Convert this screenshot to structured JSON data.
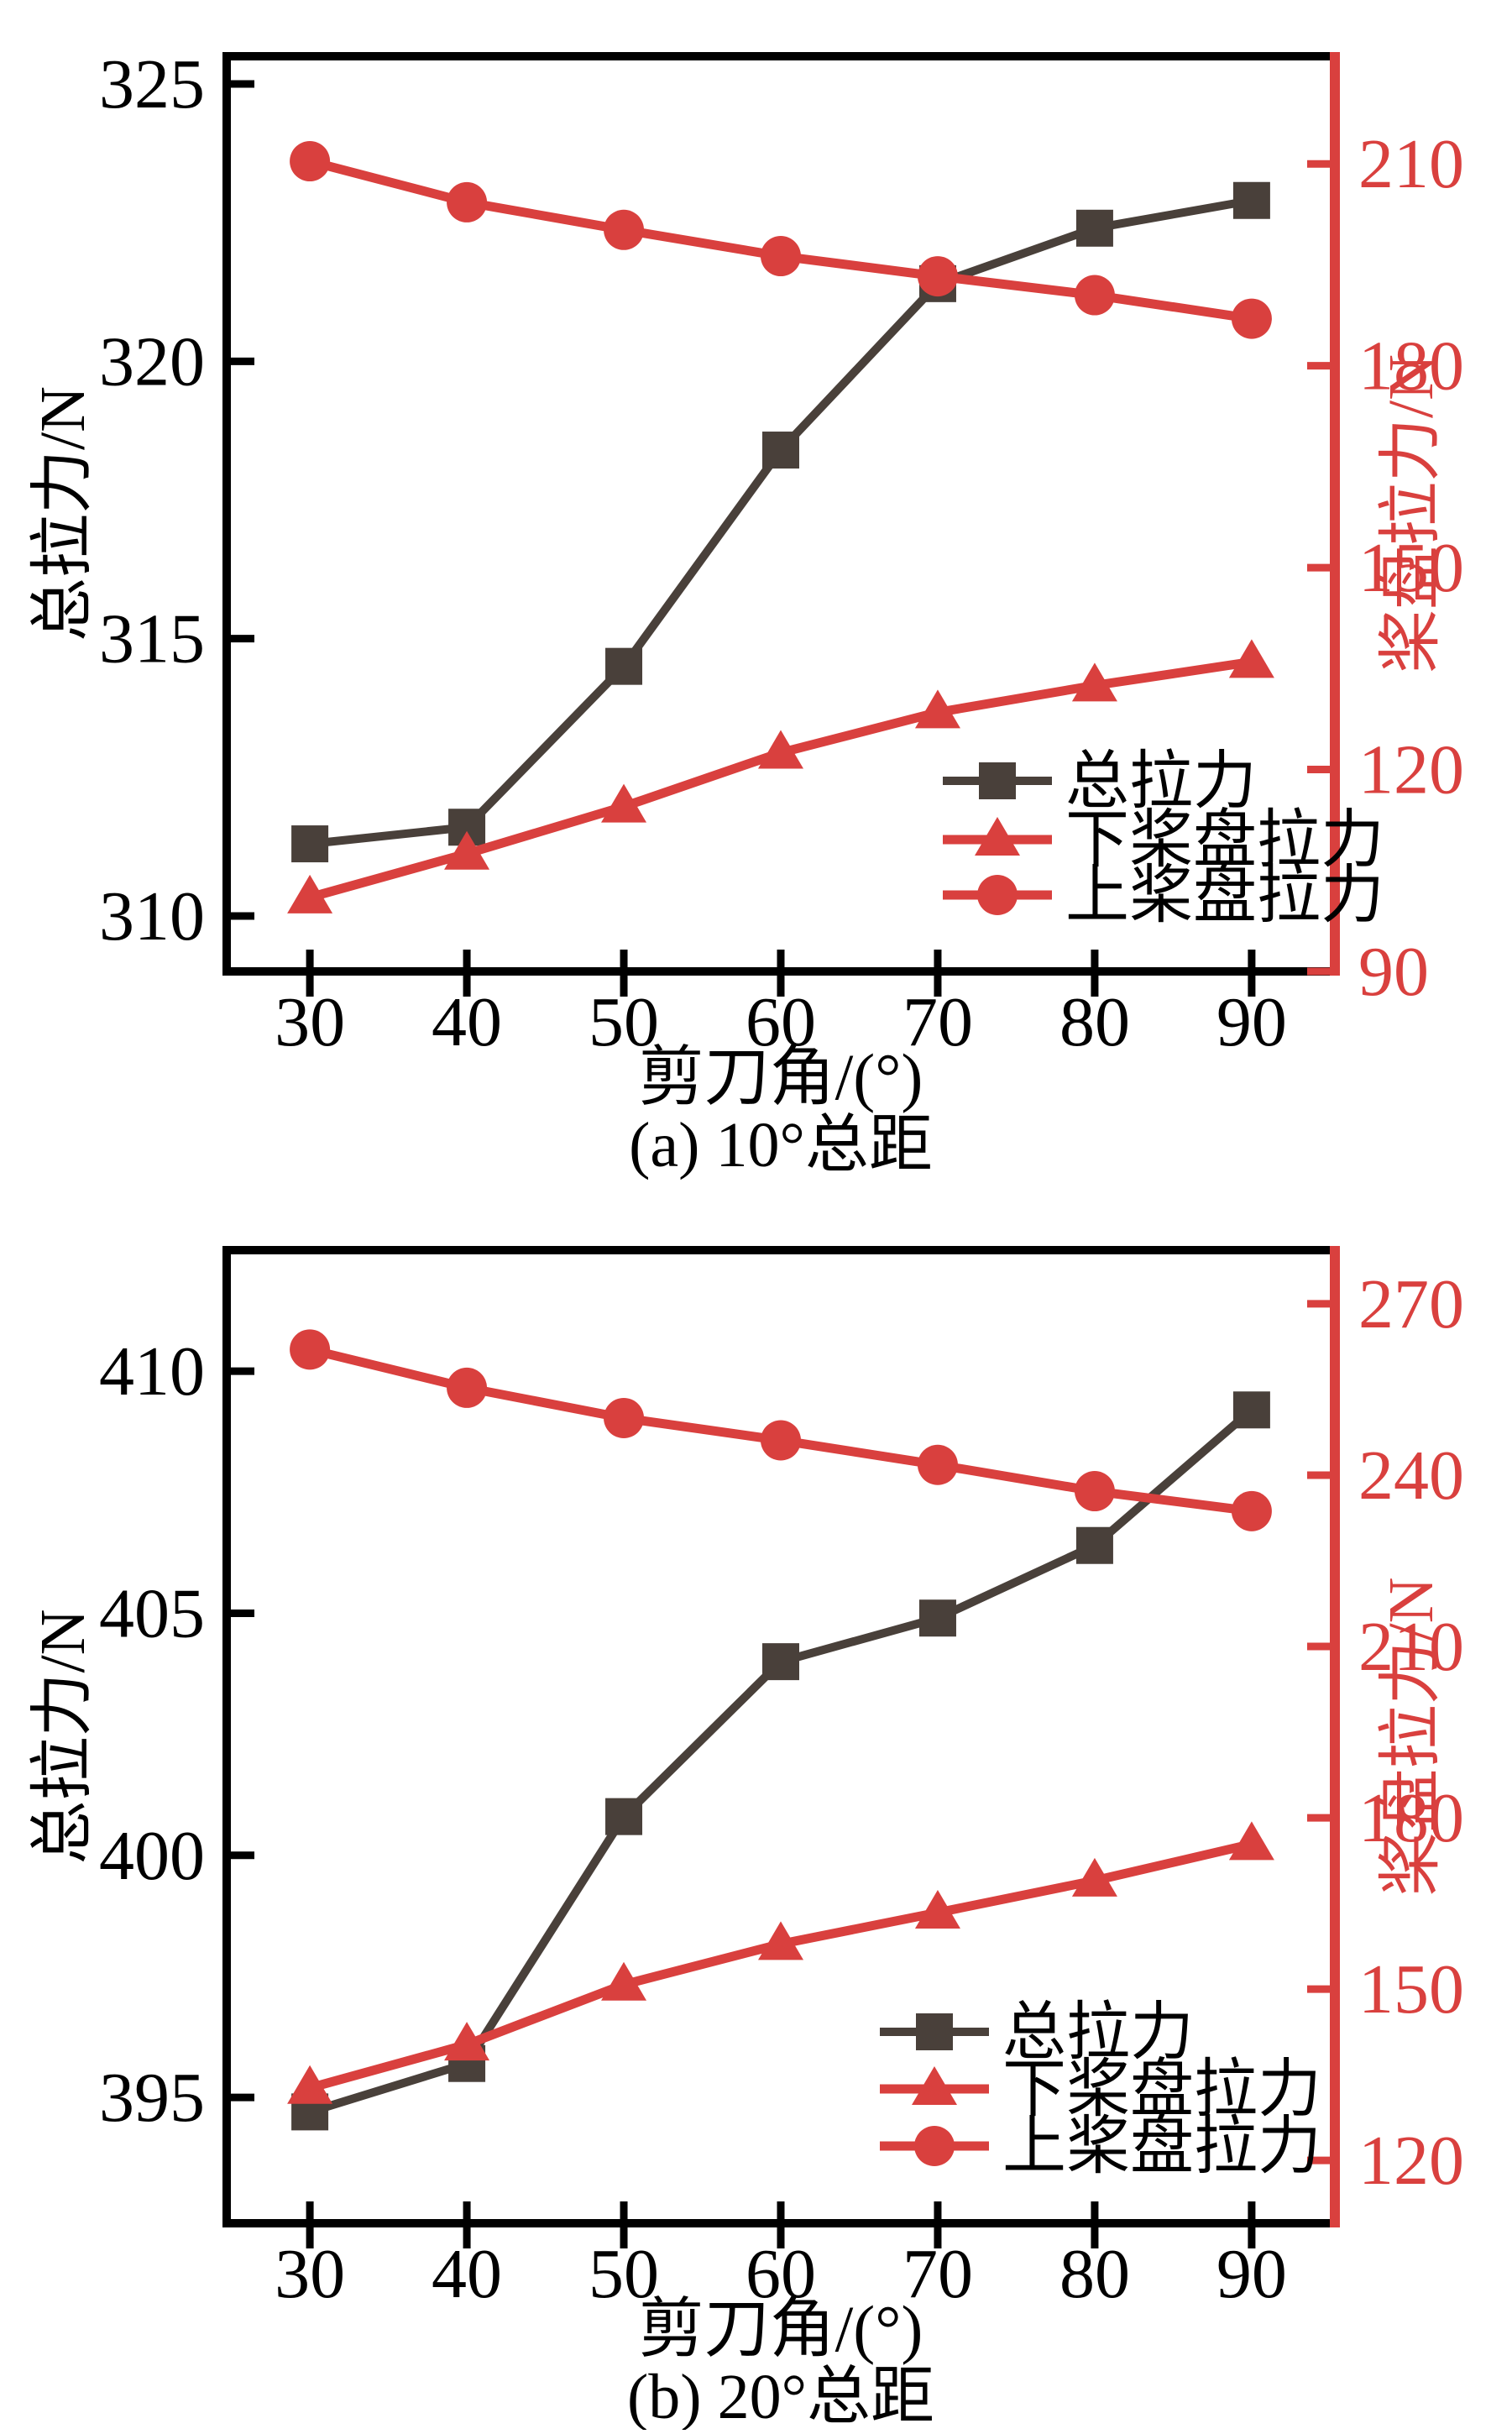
{
  "figure": {
    "background": "#ffffff",
    "description_visible_text_only": true
  },
  "colors": {
    "series_dark": "#49403a",
    "series_red": "#d9403e",
    "axis_black": "#000000",
    "axis_red": "#d9403e",
    "text_black": "#000000"
  },
  "chart_data": [
    {
      "id": "a",
      "type": "line",
      "subtitle": "(a) 10°总距",
      "xlabel": "剪刀角/(°)",
      "ylabel_left": "总拉力/N",
      "ylabel_right": "桨盘拉力/N",
      "grid": false,
      "legend_position": "inside-lower-right",
      "x_range": [
        24.7,
        95.3
      ],
      "x_ticks": [
        30,
        40,
        50,
        60,
        70,
        80,
        90
      ],
      "left_range": [
        309.0,
        325.5
      ],
      "left_ticks": [
        310,
        315,
        320,
        325
      ],
      "right_range": [
        90,
        226
      ],
      "right_ticks": [
        90,
        120,
        150,
        180,
        210
      ],
      "x": [
        30,
        40,
        50,
        60,
        70,
        80,
        90
      ],
      "series": [
        {
          "name": "总拉力",
          "axis": "left",
          "marker": "square",
          "color": "#49403a",
          "values": [
            311.3,
            311.6,
            314.5,
            318.4,
            321.4,
            322.4,
            322.9
          ]
        },
        {
          "name": "下桨盘拉力",
          "axis": "right",
          "marker": "triangle",
          "color": "#d9403e",
          "values": [
            101.0,
            107.5,
            114.5,
            122.5,
            128.5,
            132.5,
            136.0
          ]
        },
        {
          "name": "上桨盘拉力",
          "axis": "right",
          "marker": "circle",
          "color": "#d9403e",
          "values": [
            210.4,
            204.3,
            200.2,
            196.3,
            193.3,
            190.5,
            187.0
          ]
        }
      ]
    },
    {
      "id": "b",
      "type": "line",
      "subtitle": "(b) 20°总距",
      "xlabel": "剪刀角/(°)",
      "ylabel_left": "总拉力/N",
      "ylabel_right": "桨盘拉力/N",
      "grid": false,
      "legend_position": "inside-lower-right",
      "x_range": [
        24.7,
        95.3
      ],
      "x_ticks": [
        30,
        40,
        50,
        60,
        70,
        80,
        90
      ],
      "left_range": [
        392.4,
        412.5
      ],
      "left_ticks": [
        395,
        400,
        405,
        410
      ],
      "right_range": [
        109,
        279.4
      ],
      "right_ticks": [
        120,
        150,
        180,
        210,
        240,
        270
      ],
      "x": [
        30,
        40,
        50,
        60,
        70,
        80,
        90
      ],
      "series": [
        {
          "name": "总拉力",
          "axis": "left",
          "marker": "square",
          "color": "#49403a",
          "values": [
            394.7,
            395.7,
            400.8,
            404.0,
            404.9,
            406.4,
            409.2
          ]
        },
        {
          "name": "下桨盘拉力",
          "axis": "right",
          "marker": "triangle",
          "color": "#d9403e",
          "values": [
            132.7,
            140.3,
            150.8,
            157.9,
            163.4,
            169.0,
            175.4
          ]
        },
        {
          "name": "上桨盘拉力",
          "axis": "right",
          "marker": "circle",
          "color": "#d9403e",
          "values": [
            262.0,
            255.3,
            250.0,
            246.1,
            241.8,
            237.2,
            233.7
          ]
        }
      ]
    }
  ]
}
